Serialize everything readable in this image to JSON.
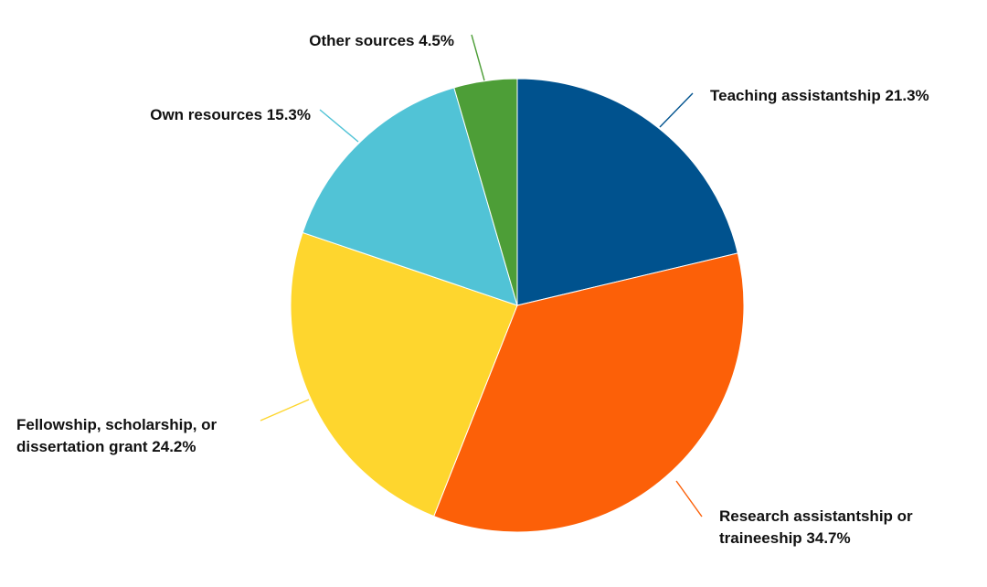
{
  "chart_data": {
    "type": "pie",
    "title": "",
    "slices": [
      {
        "label": "Teaching assistantship",
        "value": 21.3,
        "display_value": "21.3%",
        "color": "#00528e",
        "label_lines": [
          "Teaching assistantship 21.3%"
        ]
      },
      {
        "label": "Research assistantship or traineeship",
        "value": 34.7,
        "display_value": "34.7%",
        "color": "#fc6008",
        "label_lines": [
          "Research assistantship or",
          "traineeship 34.7%"
        ]
      },
      {
        "label": "Fellowship, scholarship, or dissertation grant",
        "value": 24.2,
        "display_value": "24.2%",
        "color": "#fed62e",
        "label_lines": [
          "Fellowship, scholarship, or",
          "dissertation grant 24.2%"
        ]
      },
      {
        "label": "Own resources",
        "value": 15.3,
        "display_value": "15.3%",
        "color": "#51c3d6",
        "label_lines": [
          "Own resources 15.3%"
        ]
      },
      {
        "label": "Other sources",
        "value": 4.5,
        "display_value": "4.5%",
        "color": "#4d9e37",
        "label_lines": [
          "Other sources 4.5%"
        ]
      }
    ]
  }
}
